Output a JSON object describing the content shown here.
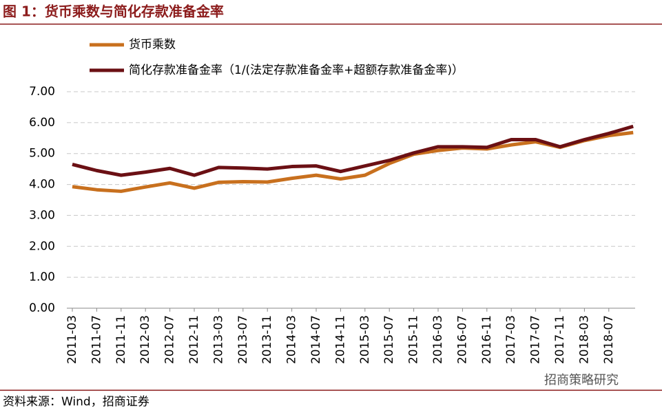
{
  "chart_data": {
    "type": "line",
    "title": "图 1：货币乘数与简化存款准备金率",
    "source": "资料来源：Wind，招商证券",
    "watermark": "招商策略研究",
    "categories": [
      "2011-03",
      "2011-07",
      "2011-11",
      "2012-03",
      "2012-07",
      "2012-11",
      "2013-03",
      "2013-07",
      "2013-11",
      "2014-03",
      "2014-07",
      "2014-11",
      "2015-03",
      "2015-07",
      "2015-11",
      "2016-03",
      "2016-07",
      "2016-11",
      "2017-03",
      "2017-07",
      "2017-11",
      "2018-03",
      "2018-07",
      null
    ],
    "series": [
      {
        "name": "货币乘数",
        "color": "#c8701e",
        "values": [
          3.93,
          3.83,
          3.78,
          3.92,
          4.05,
          3.88,
          4.07,
          4.09,
          4.08,
          4.2,
          4.3,
          4.18,
          4.3,
          4.68,
          4.98,
          5.1,
          5.18,
          5.15,
          5.28,
          5.38,
          5.2,
          5.42,
          5.58,
          5.68
        ]
      },
      {
        "name": "简化存款准备金率（1/(法定存款准备金率+超额存款准备金率)）",
        "color": "#6b1014",
        "values": [
          4.65,
          4.45,
          4.3,
          4.4,
          4.52,
          4.3,
          4.55,
          4.53,
          4.5,
          4.58,
          4.6,
          4.42,
          4.6,
          4.78,
          5.02,
          5.22,
          5.22,
          5.2,
          5.45,
          5.45,
          5.22,
          5.45,
          5.65,
          5.88
        ]
      }
    ],
    "ylim": [
      0,
      7
    ],
    "yticks": [
      {
        "value": 0,
        "label": "0.00"
      },
      {
        "value": 1,
        "label": "1.00"
      },
      {
        "value": 2,
        "label": "2.00"
      },
      {
        "value": 3,
        "label": "3.00"
      },
      {
        "value": 4,
        "label": "4.00"
      },
      {
        "value": 5,
        "label": "5.00"
      },
      {
        "value": 6,
        "label": "6.00"
      },
      {
        "value": 7,
        "label": "7.00"
      }
    ],
    "grid": true
  }
}
